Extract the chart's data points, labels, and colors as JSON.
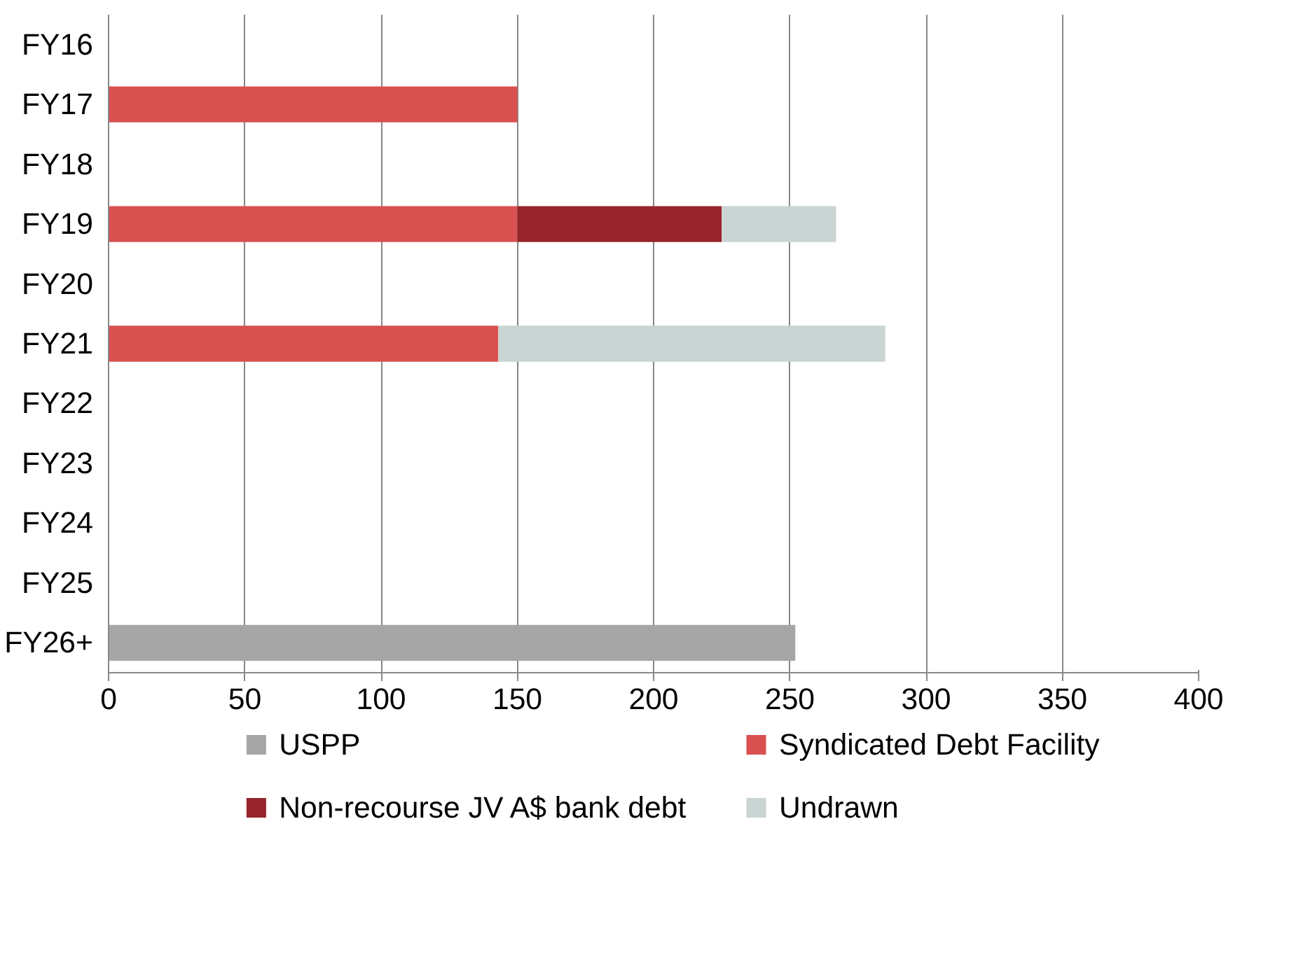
{
  "chart_data": {
    "type": "bar",
    "orientation": "horizontal",
    "stacked": true,
    "categories": [
      "FY16",
      "FY17",
      "FY18",
      "FY19",
      "FY20",
      "FY21",
      "FY22",
      "FY23",
      "FY24",
      "FY25",
      "FY26+"
    ],
    "series": [
      {
        "name": "USPP",
        "color": "#a6a6a6",
        "values": [
          null,
          null,
          null,
          null,
          null,
          null,
          null,
          null,
          null,
          null,
          252
        ]
      },
      {
        "name": "Syndicated Debt Facility",
        "color": "#d95050",
        "values": [
          null,
          150,
          null,
          150,
          null,
          143,
          null,
          null,
          null,
          null,
          null
        ]
      },
      {
        "name": "Non-recourse JV A$ bank debt",
        "color": "#96242a",
        "values": [
          null,
          null,
          null,
          75,
          null,
          null,
          null,
          null,
          null,
          null,
          null
        ]
      },
      {
        "name": "Undrawn",
        "color": "#c9d4d3",
        "values": [
          null,
          null,
          null,
          42,
          null,
          142,
          null,
          null,
          null,
          null,
          null
        ]
      }
    ],
    "xlim": [
      0,
      400
    ],
    "xticks": [
      0,
      50,
      100,
      150,
      200,
      250,
      300,
      350,
      400
    ],
    "grid": "x",
    "legend": "bottom"
  }
}
